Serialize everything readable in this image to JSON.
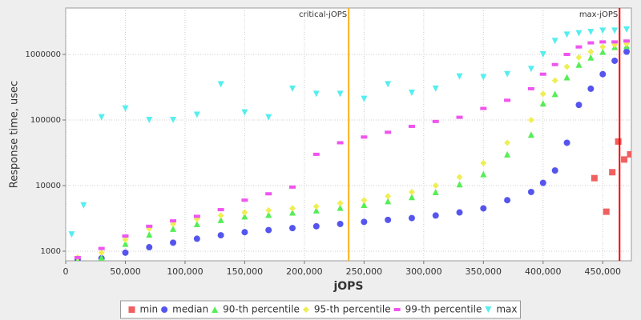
{
  "chart_data": {
    "type": "scatter",
    "yscale": "log",
    "grid": true,
    "x_label": "jOPS",
    "y_label": "Response time, usec",
    "xlim": [
      0,
      474000
    ],
    "ylim": [
      714,
      5100000
    ],
    "xticks": [
      {
        "value": 0,
        "label": "0"
      },
      {
        "value": 50000,
        "label": "50,000"
      },
      {
        "value": 100000,
        "label": "100,000"
      },
      {
        "value": 150000,
        "label": "150,000"
      },
      {
        "value": 200000,
        "label": "200,000"
      },
      {
        "value": 250000,
        "label": "250,000"
      },
      {
        "value": 300000,
        "label": "300,000"
      },
      {
        "value": 350000,
        "label": "350,000"
      },
      {
        "value": 400000,
        "label": "400,000"
      },
      {
        "value": 450000,
        "label": "450,000"
      }
    ],
    "yticks": [
      1000,
      10000,
      100000,
      1000000
    ],
    "reference_lines": [
      {
        "label": "critical-jOPS",
        "value": 237100,
        "color": "#ffb020"
      },
      {
        "label": "max-jOPS",
        "value": 464100,
        "color": "#ff0000"
      }
    ],
    "series": [
      {
        "name": "min",
        "color": "#f06060",
        "marker": "square",
        "x": [
          443000,
          453000,
          458000,
          463000,
          468000,
          473000
        ],
        "values": [
          13000,
          4000,
          16000,
          47000,
          25000,
          30000
        ]
      },
      {
        "name": "median",
        "color": "#5555ee",
        "marker": "circle",
        "x": [
          10000,
          30000,
          50000,
          70000,
          90000,
          110000,
          130000,
          150000,
          170000,
          190000,
          210000,
          230000,
          250000,
          270000,
          290000,
          310000,
          330000,
          350000,
          370000,
          390000,
          400000,
          410000,
          420000,
          430000,
          440000,
          450000,
          460000,
          470000
        ],
        "values": [
          750,
          780,
          950,
          1150,
          1350,
          1550,
          1750,
          1950,
          2100,
          2250,
          2400,
          2600,
          2800,
          3000,
          3200,
          3500,
          3900,
          4500,
          6000,
          8000,
          11000,
          17000,
          45000,
          170000,
          300000,
          500000,
          800000,
          1100000
        ]
      },
      {
        "name": "90-th percentile",
        "color": "#55ee55",
        "marker": "triangle-up",
        "x": [
          10000,
          30000,
          50000,
          70000,
          90000,
          110000,
          130000,
          150000,
          170000,
          190000,
          210000,
          230000,
          250000,
          270000,
          290000,
          310000,
          330000,
          350000,
          370000,
          390000,
          400000,
          410000,
          420000,
          430000,
          440000,
          450000,
          460000,
          470000
        ],
        "values": [
          720,
          800,
          1300,
          1800,
          2200,
          2600,
          3000,
          3400,
          3600,
          3900,
          4200,
          4600,
          5100,
          5800,
          6700,
          8000,
          10500,
          15000,
          30000,
          60000,
          180000,
          250000,
          450000,
          700000,
          900000,
          1100000,
          1300000,
          1350000
        ]
      },
      {
        "name": "95-th percentile",
        "color": "#eeee55",
        "marker": "diamond",
        "x": [
          10000,
          30000,
          50000,
          70000,
          90000,
          110000,
          130000,
          150000,
          170000,
          190000,
          210000,
          230000,
          250000,
          270000,
          290000,
          310000,
          330000,
          350000,
          370000,
          390000,
          400000,
          410000,
          420000,
          430000,
          440000,
          450000,
          460000,
          470000
        ],
        "values": [
          800,
          950,
          1500,
          2200,
          2600,
          3100,
          3500,
          3900,
          4200,
          4500,
          4800,
          5400,
          6000,
          6900,
          8000,
          10000,
          13500,
          22000,
          45000,
          100000,
          250000,
          400000,
          650000,
          900000,
          1100000,
          1300000,
          1400000,
          1450000
        ]
      },
      {
        "name": "99-th percentile",
        "color": "#ee55ee",
        "marker": "rect",
        "x": [
          10000,
          30000,
          50000,
          70000,
          90000,
          110000,
          130000,
          150000,
          170000,
          190000,
          210000,
          230000,
          250000,
          270000,
          290000,
          310000,
          330000,
          350000,
          370000,
          390000,
          400000,
          410000,
          420000,
          430000,
          440000,
          450000,
          460000,
          470000
        ],
        "values": [
          800,
          1100,
          1700,
          2400,
          2900,
          3400,
          4300,
          6000,
          7500,
          9500,
          30000,
          45000,
          55000,
          65000,
          80000,
          95000,
          110000,
          150000,
          200000,
          300000,
          500000,
          700000,
          1000000,
          1300000,
          1500000,
          1550000,
          1550000,
          1600000
        ]
      },
      {
        "name": "max",
        "color": "#55eeee",
        "marker": "triangle-down",
        "x": [
          5000,
          15000,
          30000,
          50000,
          70000,
          90000,
          110000,
          130000,
          150000,
          170000,
          190000,
          210000,
          230000,
          250000,
          270000,
          290000,
          310000,
          330000,
          350000,
          370000,
          390000,
          400000,
          410000,
          420000,
          430000,
          440000,
          450000,
          460000,
          470000
        ],
        "values": [
          1800,
          5000,
          110000,
          150000,
          100000,
          100000,
          120000,
          350000,
          130000,
          110000,
          300000,
          250000,
          250000,
          210000,
          350000,
          260000,
          300000,
          460000,
          450000,
          500000,
          600000,
          1000000,
          1600000,
          2000000,
          2100000,
          2200000,
          2300000,
          2300000,
          2400000
        ]
      }
    ]
  }
}
